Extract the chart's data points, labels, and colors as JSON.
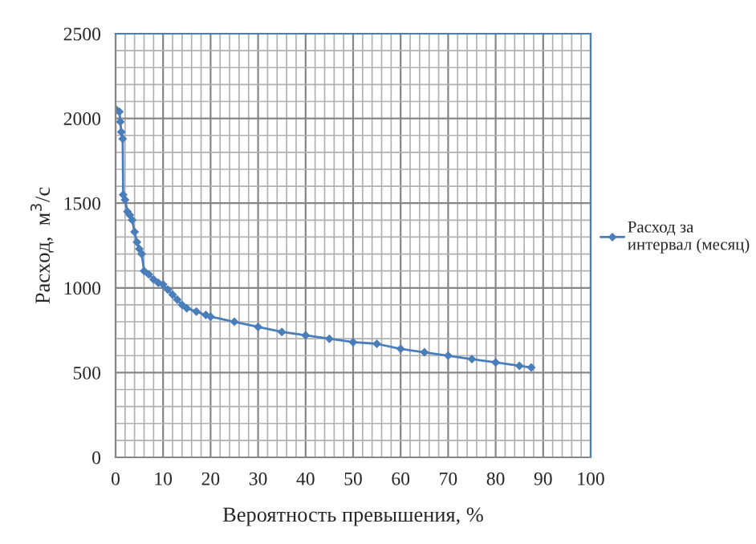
{
  "chart_data": {
    "type": "line",
    "xlabel": "Вероятность превышения, %",
    "ylabel": "Расход,  м$^{3}$/с",
    "xlim": [
      0,
      100
    ],
    "xticks": [
      0,
      10,
      20,
      30,
      40,
      50,
      60,
      70,
      80,
      90,
      100
    ],
    "ylim": [
      0,
      2500
    ],
    "yticks": [
      0,
      500,
      1000,
      1500,
      2000,
      2500
    ],
    "grid": true,
    "legend": "right",
    "marker": "diamond",
    "line_style": "solid",
    "series": [
      {
        "name": "Расход за интервал (месяц)",
        "color": "#4a7ebb",
        "x": [
          0.2,
          0.8,
          1,
          1.2,
          1.5,
          1.6,
          2,
          2.5,
          3,
          3.5,
          4,
          4.5,
          5,
          5.5,
          6,
          7,
          8,
          9,
          10,
          11,
          12,
          13,
          14,
          15,
          17,
          19,
          20,
          25,
          30,
          35,
          40,
          45,
          50,
          55,
          60,
          65,
          70,
          75,
          80,
          85,
          87.5
        ],
        "values": [
          2050,
          2040,
          1980,
          1920,
          1880,
          1550,
          1520,
          1450,
          1430,
          1400,
          1330,
          1270,
          1230,
          1200,
          1100,
          1080,
          1050,
          1030,
          1020,
          990,
          960,
          930,
          900,
          880,
          860,
          840,
          830,
          800,
          770,
          740,
          720,
          700,
          680,
          670,
          640,
          620,
          600,
          580,
          560,
          540,
          530
        ]
      }
    ]
  }
}
